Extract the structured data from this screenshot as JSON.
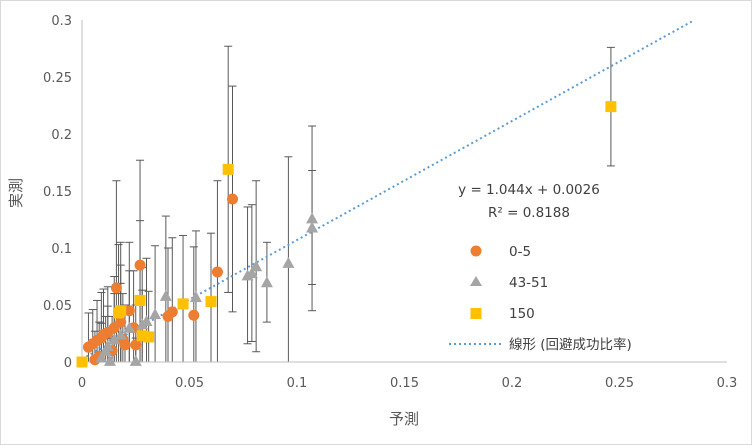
{
  "chart_data": {
    "type": "scatter",
    "title": "",
    "xlabel": "予測",
    "ylabel": "実測",
    "xlim": [
      0,
      0.3
    ],
    "ylim": [
      0,
      0.3
    ],
    "x_ticks": [
      "0",
      "0.05",
      "0.1",
      "0.15",
      "0.2",
      "0.25",
      "0.3"
    ],
    "y_ticks": [
      "0",
      "0.05",
      "0.1",
      "0.15",
      "0.2",
      "0.25",
      "0.3"
    ],
    "grid": false,
    "legend_position": "right",
    "series": [
      {
        "name": "0-5",
        "marker": "circle",
        "color": "#ED7D31",
        "points": [
          {
            "x": 0.003,
            "y": 0.013,
            "err": 0.03
          },
          {
            "x": 0.005,
            "y": 0.016,
            "err": 0.03
          },
          {
            "x": 0.006,
            "y": 0.002,
            "err": 0.025
          },
          {
            "x": 0.007,
            "y": 0.019,
            "err": 0.035
          },
          {
            "x": 0.008,
            "y": 0.005,
            "err": 0.03
          },
          {
            "x": 0.009,
            "y": 0.021,
            "err": 0.04
          },
          {
            "x": 0.01,
            "y": 0.024,
            "err": 0.04
          },
          {
            "x": 0.012,
            "y": 0.026,
            "err": 0.04
          },
          {
            "x": 0.014,
            "y": 0.01,
            "err": 0.03
          },
          {
            "x": 0.015,
            "y": 0.03,
            "err": 0.045
          },
          {
            "x": 0.016,
            "y": 0.065,
            "err": 0.094
          },
          {
            "x": 0.018,
            "y": 0.035,
            "err": 0.05
          },
          {
            "x": 0.019,
            "y": 0.02,
            "err": 0.04
          },
          {
            "x": 0.02,
            "y": 0.015,
            "err": 0.035
          },
          {
            "x": 0.022,
            "y": 0.045,
            "err": 0.06
          },
          {
            "x": 0.024,
            "y": 0.03,
            "err": 0.05
          },
          {
            "x": 0.025,
            "y": 0.015,
            "err": 0.035
          },
          {
            "x": 0.027,
            "y": 0.085,
            "err": 0.092
          },
          {
            "x": 0.04,
            "y": 0.04,
            "err": 0.06
          },
          {
            "x": 0.042,
            "y": 0.044,
            "err": 0.065
          },
          {
            "x": 0.052,
            "y": 0.041,
            "err": 0.06
          },
          {
            "x": 0.063,
            "y": 0.079,
            "err": 0.08
          },
          {
            "x": 0.07,
            "y": 0.143,
            "err": 0.099
          }
        ]
      },
      {
        "name": "43-51",
        "marker": "triangle",
        "color": "#A5A5A5",
        "points": [
          {
            "x": 0.009,
            "y": 0.004,
            "err": 0.03
          },
          {
            "x": 0.011,
            "y": 0.01,
            "err": 0.03
          },
          {
            "x": 0.012,
            "y": 0.014,
            "err": 0.035
          },
          {
            "x": 0.013,
            "y": 0.001,
            "err": 0.02
          },
          {
            "x": 0.015,
            "y": 0.02,
            "err": 0.04
          },
          {
            "x": 0.018,
            "y": 0.024,
            "err": 0.045
          },
          {
            "x": 0.022,
            "y": 0.03,
            "err": 0.05
          },
          {
            "x": 0.025,
            "y": 0.001,
            "err": 0.02
          },
          {
            "x": 0.028,
            "y": 0.033,
            "err": 0.05
          },
          {
            "x": 0.03,
            "y": 0.036,
            "err": 0.055
          },
          {
            "x": 0.034,
            "y": 0.042,
            "err": 0.06
          },
          {
            "x": 0.039,
            "y": 0.058,
            "err": 0.07
          },
          {
            "x": 0.053,
            "y": 0.057,
            "err": 0.058
          },
          {
            "x": 0.077,
            "y": 0.076,
            "err": 0.06
          },
          {
            "x": 0.079,
            "y": 0.078,
            "err": 0.06
          },
          {
            "x": 0.081,
            "y": 0.084,
            "err": 0.075
          },
          {
            "x": 0.086,
            "y": 0.07,
            "err": 0.035
          },
          {
            "x": 0.096,
            "y": 0.087,
            "err": 0.093
          },
          {
            "x": 0.107,
            "y": 0.118,
            "err": 0.05
          },
          {
            "x": 0.107,
            "y": 0.126,
            "err": 0.081
          }
        ]
      },
      {
        "name": "150",
        "marker": "square",
        "color": "#FFC000",
        "points": [
          {
            "x": 0.0,
            "y": 0.0,
            "err": 0.0
          },
          {
            "x": 0.017,
            "y": 0.043,
            "err": 0.06
          },
          {
            "x": 0.018,
            "y": 0.045,
            "err": 0.06
          },
          {
            "x": 0.027,
            "y": 0.054,
            "err": 0.07
          },
          {
            "x": 0.028,
            "y": 0.023,
            "err": 0.04
          },
          {
            "x": 0.031,
            "y": 0.022,
            "err": 0.04
          },
          {
            "x": 0.047,
            "y": 0.051,
            "err": 0.06
          },
          {
            "x": 0.06,
            "y": 0.053,
            "err": 0.06
          },
          {
            "x": 0.068,
            "y": 0.169,
            "err": 0.108
          },
          {
            "x": 0.246,
            "y": 0.224,
            "err": 0.052
          }
        ]
      }
    ],
    "trendline": {
      "name": "線形 (回避成功比率)",
      "slope": 1.044,
      "intercept": 0.0026,
      "color": "#5B9BD5",
      "equation": "y = 1.044x + 0.0026",
      "r2": "R² = 0.8188"
    }
  }
}
